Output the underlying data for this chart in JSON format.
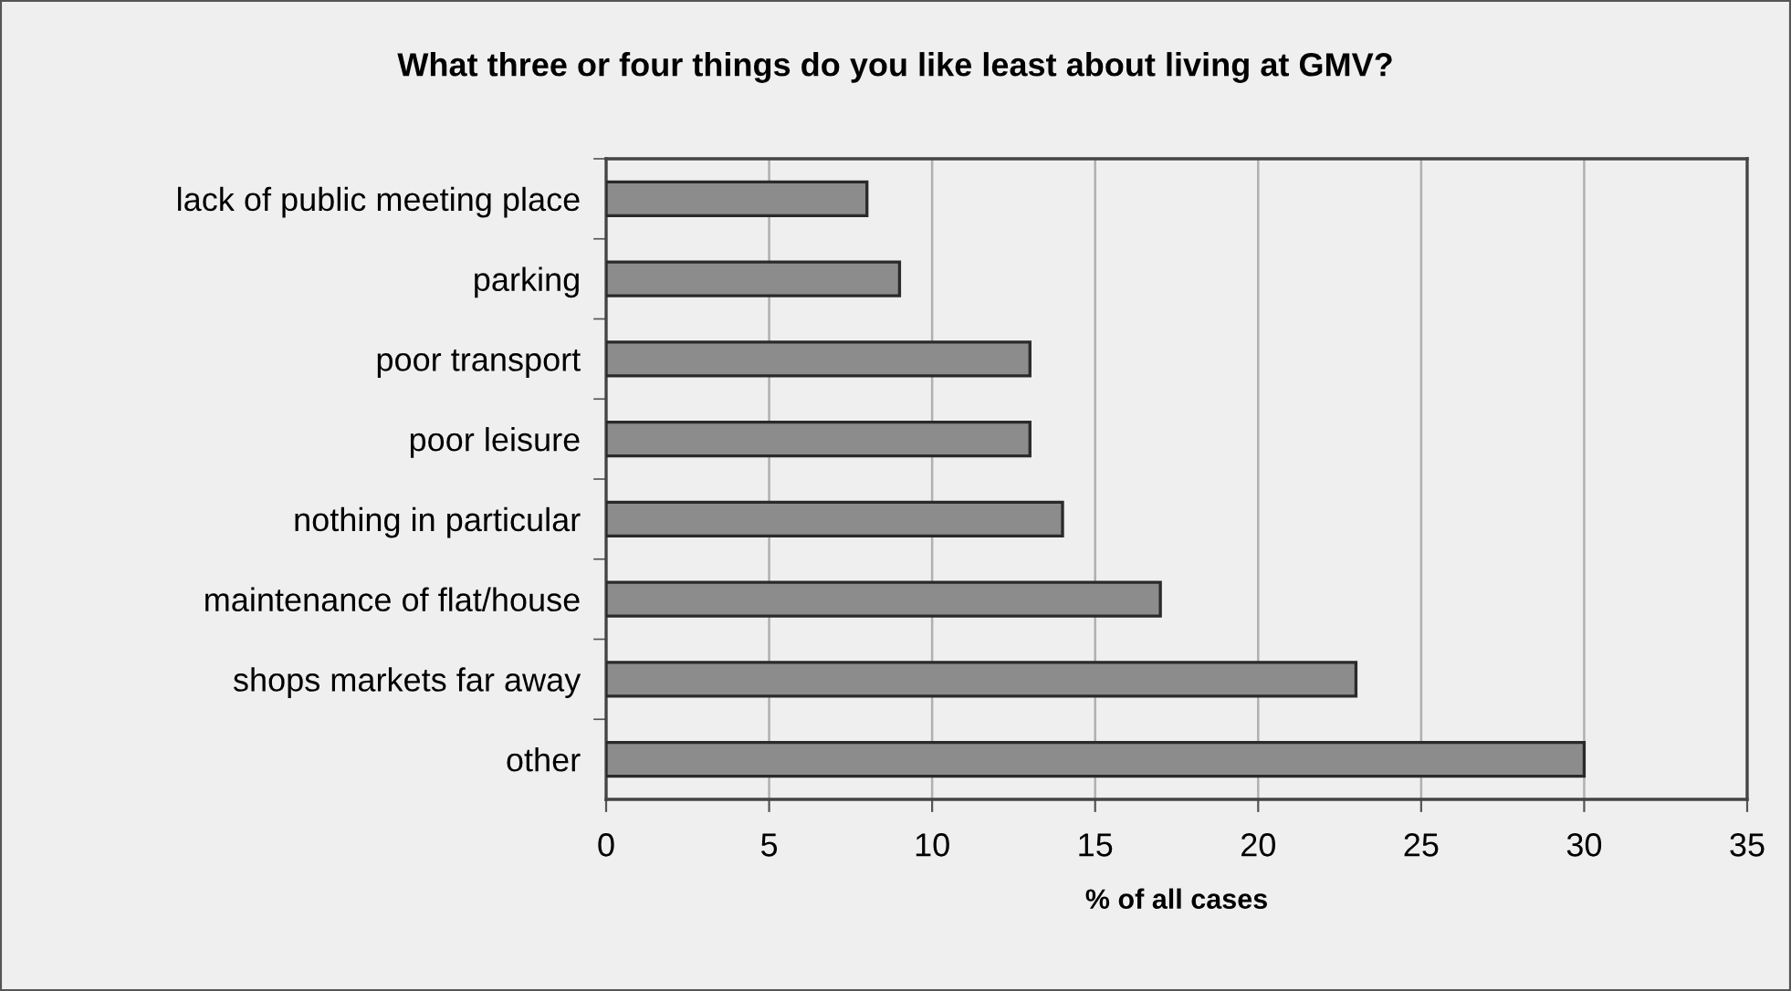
{
  "chart_data": {
    "type": "bar",
    "orientation": "horizontal",
    "title": "What three or four things do you like least about living at GMV?",
    "xlabel": "% of all cases",
    "categories": [
      "lack of public meeting place",
      "parking",
      "poor transport",
      "poor leisure",
      "nothing in particular",
      "maintenance of flat/house",
      "shops markets far away",
      "other"
    ],
    "values": [
      8,
      9,
      13,
      13,
      14,
      17,
      23,
      30
    ],
    "color": "#8c8c8c",
    "xlim": [
      0,
      35
    ],
    "xticks": [
      0,
      5,
      10,
      15,
      20,
      25,
      30,
      35
    ],
    "grid": "x",
    "legend": false
  }
}
